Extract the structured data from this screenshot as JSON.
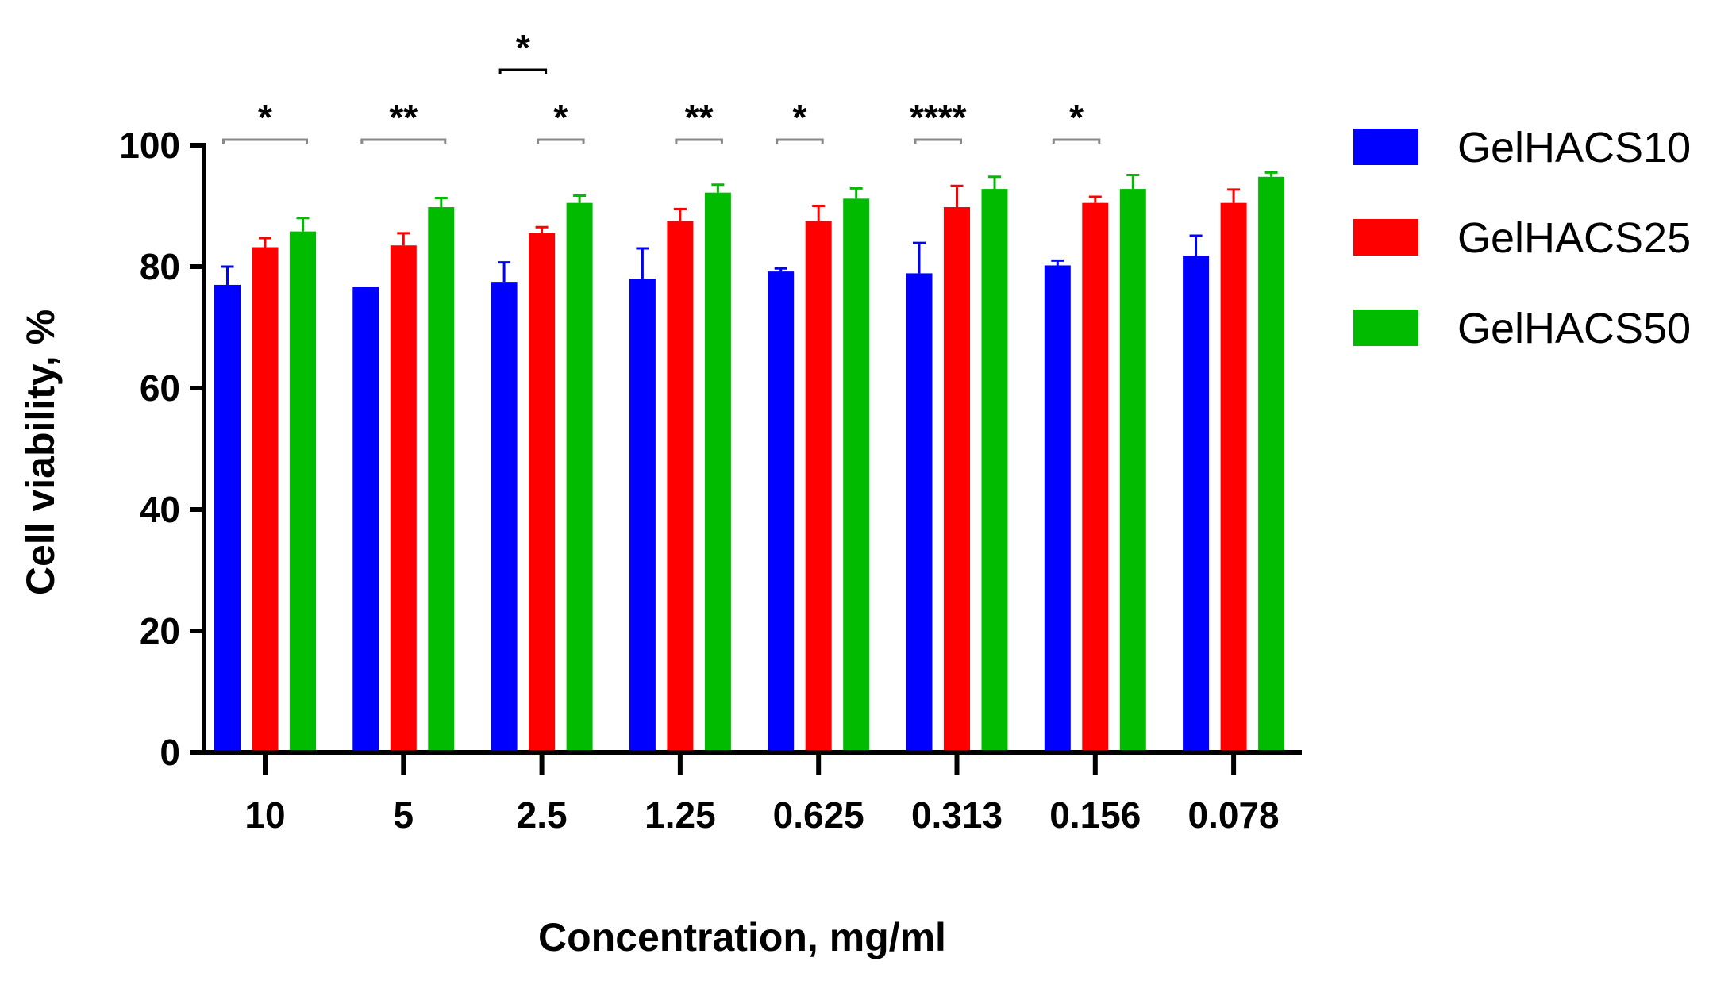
{
  "chart_data": {
    "type": "bar",
    "title": "",
    "xlabel": "Concentration, mg/ml",
    "ylabel": "Cell viability, %",
    "ylim": [
      0,
      100
    ],
    "yticks": [
      "0",
      "20",
      "40",
      "60",
      "80",
      "100"
    ],
    "categories": [
      "10",
      "5",
      "2.5",
      "1.25",
      "0.625",
      "0.313",
      "0.156",
      "0.078"
    ],
    "legend_position": "right",
    "series": [
      {
        "name": "GelHACS10",
        "color": "#0000ff",
        "values": [
          77,
          76.6,
          77.5,
          78,
          79.2,
          78.9,
          80.2,
          81.8
        ],
        "errors": [
          3,
          0,
          3.2,
          5,
          0.5,
          5,
          0.8,
          3.3
        ]
      },
      {
        "name": "GelHACS25",
        "color": "#ff0000",
        "values": [
          83.2,
          83.5,
          85.5,
          87.5,
          87.5,
          89.8,
          90.5,
          90.5
        ],
        "errors": [
          1.5,
          2,
          1,
          2,
          2.5,
          3.5,
          1,
          2.2
        ]
      },
      {
        "name": "GelHACS50",
        "color": "#00bb00",
        "values": [
          85.8,
          89.8,
          90.5,
          92.2,
          91.2,
          92.8,
          92.8,
          94.8
        ],
        "errors": [
          2.2,
          1.5,
          1.2,
          1.3,
          1.7,
          2,
          2.3,
          0.7
        ]
      }
    ],
    "significance": [
      {
        "label": "*",
        "category": "10",
        "from": 0,
        "to": 2
      },
      {
        "label": "**",
        "category": "5",
        "from": 0,
        "to": 2
      },
      {
        "label": "*",
        "category": "2.5",
        "from": 0,
        "to": 1,
        "stacked": true
      },
      {
        "label": "*",
        "category": "2.5",
        "from": 1,
        "to": 2
      },
      {
        "label": "**",
        "category": "1.25",
        "from": 1,
        "to": 2
      },
      {
        "label": "*",
        "category": "0.625",
        "from": 0,
        "to": 1
      },
      {
        "label": "****",
        "category": "0.313",
        "from": 0,
        "to": 1
      },
      {
        "label": "*",
        "category": "0.156",
        "from": 0,
        "to": 1
      }
    ]
  }
}
